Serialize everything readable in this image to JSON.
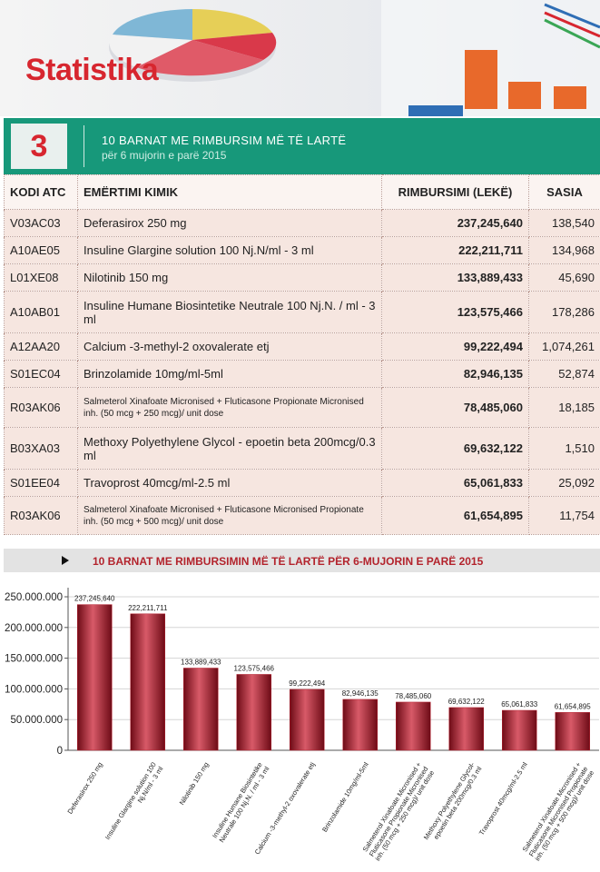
{
  "header": {
    "brand": "Statistika"
  },
  "section": {
    "number": "3",
    "title": "10 BARNAT ME RIMBURSIM MË TË LARTË",
    "subtitle": "për 6 mujorin e parë 2015"
  },
  "table": {
    "columns": [
      "KODI ATC",
      "EMËRTIMI KIMIK",
      "RIMBURSIMI (LEKË)",
      "SASIA"
    ],
    "rows": [
      [
        "V03AC03",
        "Deferasirox 250 mg",
        "237,245,640",
        "138,540"
      ],
      [
        "A10AE05",
        "Insuline Glargine solution 100 Nj.N/ml  - 3 ml",
        "222,211,711",
        "134,968"
      ],
      [
        "L01XE08",
        "Nilotinib 150 mg",
        "133,889,433",
        "45,690"
      ],
      [
        "A10AB01",
        "Insuline Humane Biosintetike Neutrale 100 Nj.N. / ml - 3 ml",
        "123,575,466",
        "178,286"
      ],
      [
        "A12AA20",
        "Calcium -3-methyl-2 oxovalerate etj",
        "99,222,494",
        "1,074,261"
      ],
      [
        "S01EC04",
        "Brinzolamide 10mg/ml-5ml",
        "82,946,135",
        "52,874"
      ],
      [
        "R03AK06",
        "Salmeterol  Xinafoate Micronised + Fluticasone Propionate Micronised inh. (50 mcg + 250 mcg)/ unit dose",
        "78,485,060",
        "18,185"
      ],
      [
        "B03XA03",
        "Methoxy  Polyethylene Glycol - epoetin beta 200mcg/0.3 ml",
        "69,632,122",
        "1,510"
      ],
      [
        "S01EE04",
        "Travoprost 40mcg/ml-2.5 ml",
        "65,061,833",
        "25,092"
      ],
      [
        "R03AK06",
        "Salmeterol  Xinafoate Micronised + Fluticasone Micronised Propionate inh. (50 mcg + 500 mcg)/ unit dose",
        "61,654,895",
        "11,754"
      ]
    ]
  },
  "chart_data": {
    "type": "bar",
    "title": "10 BARNAT ME RIMBURSIMIN MË TË LARTË PËR 6-MUJORIN E PARË 2015",
    "categories": [
      "Deferasirox 250 mg",
      "Insuline Glargine solution 100 Nj.N/ml - 3 ml",
      "Nilotinib 150 mg",
      "Insuline Humane Biosintetike Neutrale 100 Nj.N. / ml - 3 ml",
      "Calcium -3-methyl-2 oxovalerate etj",
      "Brinzolamide 10mg/ml-5ml",
      "Salmeterol Xinafoate Micronised + Fluticasone Propionate Micronised inh. (50 mcg + 250 mcg)/ unit dose",
      "Methoxy Polyethylene Glycol-epoetin beta 200mcg/0.3 ml",
      "Travoprost 40mcg/ml-2.5 ml",
      "Salmeterol Xinafoate Micronised + Fluticasone Micronised Propionate inh. (50 mcg + 500 mcg)/ unit dose"
    ],
    "values": [
      237245640,
      222211711,
      133889433,
      123575466,
      99222494,
      82946135,
      78485060,
      69632122,
      65061833,
      61654895
    ],
    "value_labels": [
      "237,245,640",
      "222,211,711",
      "133,889,433",
      "123,575,466",
      "99,222,494",
      "82,946,135",
      "78,485,060",
      "69,632,122",
      "65,061,833",
      "61,654,895"
    ],
    "color": "#b5212f",
    "ylim": [
      0,
      250000000
    ],
    "yticks": [
      0,
      {
        "value": 50000000,
        "label": "50.000.000"
      },
      {
        "value": 100000000,
        "label": "100.000.000"
      },
      {
        "value": 150000000,
        "label": "150.000.000"
      },
      {
        "value": 200000000,
        "label": "200.000.000"
      },
      {
        "value": 250000000,
        "label": "250.000.000"
      }
    ],
    "grid": true
  }
}
